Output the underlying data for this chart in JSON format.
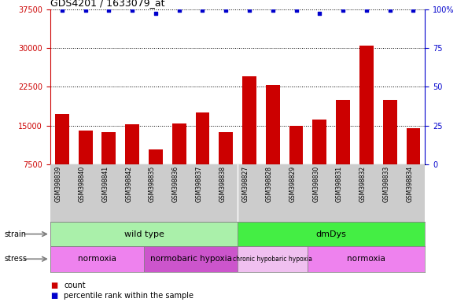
{
  "title": "GDS4201 / 1633079_at",
  "samples": [
    "GSM398839",
    "GSM398840",
    "GSM398841",
    "GSM398842",
    "GSM398835",
    "GSM398836",
    "GSM398837",
    "GSM398838",
    "GSM398827",
    "GSM398828",
    "GSM398829",
    "GSM398830",
    "GSM398831",
    "GSM398832",
    "GSM398833",
    "GSM398834"
  ],
  "counts": [
    17200,
    14000,
    13800,
    15300,
    10500,
    15500,
    17500,
    13800,
    24500,
    22800,
    15000,
    16200,
    20000,
    30500,
    20000,
    14500
  ],
  "percentile_ranks": [
    99,
    99,
    99,
    99,
    97,
    99,
    99,
    99,
    99,
    99,
    99,
    97,
    99,
    99,
    99,
    99
  ],
  "ylim_left": [
    7500,
    37500
  ],
  "ylim_right": [
    0,
    100
  ],
  "yticks_left": [
    7500,
    15000,
    22500,
    30000,
    37500
  ],
  "yticks_right": [
    0,
    25,
    50,
    75,
    100
  ],
  "bar_color": "#cc0000",
  "dot_color": "#0000cc",
  "strain_groups": [
    {
      "label": "wild type",
      "start": 0,
      "end": 8,
      "color": "#aaf0aa"
    },
    {
      "label": "dmDys",
      "start": 8,
      "end": 16,
      "color": "#44ee44"
    }
  ],
  "stress_groups": [
    {
      "label": "normoxia",
      "start": 0,
      "end": 4,
      "color": "#ee82ee"
    },
    {
      "label": "normobaric hypoxia",
      "start": 4,
      "end": 8,
      "color": "#cc55cc"
    },
    {
      "label": "chronic hypobaric hypoxia",
      "start": 8,
      "end": 11,
      "color": "#f0c0f0"
    },
    {
      "label": "normoxia",
      "start": 11,
      "end": 16,
      "color": "#ee82ee"
    }
  ],
  "axis_color_left": "#cc0000",
  "axis_color_right": "#0000cc",
  "tick_area_color": "#cccccc",
  "grid_color": "black",
  "grid_style": "dotted",
  "legend_count_color": "#cc0000",
  "legend_dot_color": "#0000cc"
}
